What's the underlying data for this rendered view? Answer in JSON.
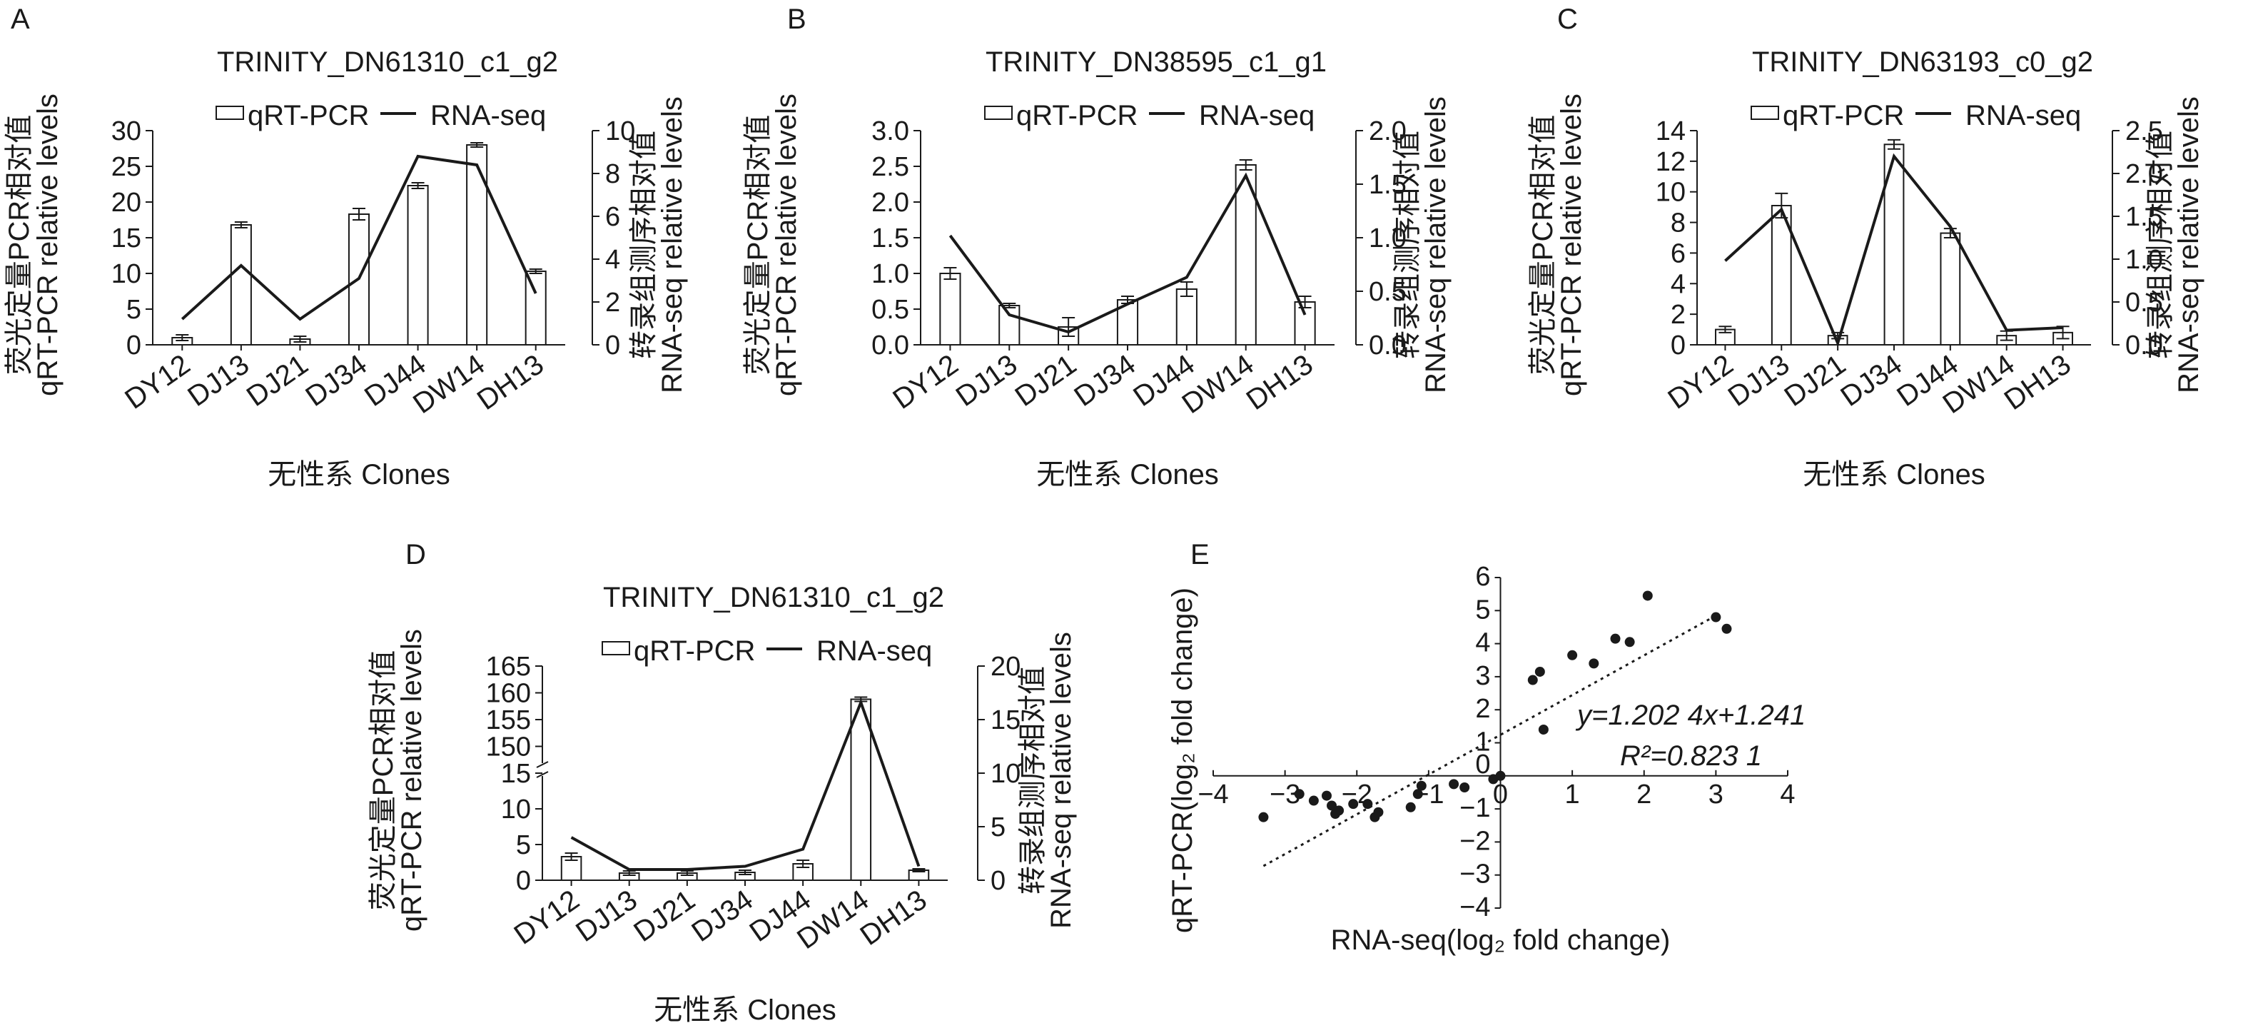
{
  "panels": [
    {
      "letter": "A",
      "title": "TRINITY_DN61310_c1_g2",
      "legend": {
        "bar": "qRT-PCR",
        "line": "RNA-seq"
      },
      "ylabel_left": [
        "荧光定量PCR相对值",
        "qRT-PCR relative levels"
      ],
      "ylabel_right": [
        "转录组测序相对值",
        "RNA-seq relative levels"
      ],
      "xlabel": "无性系 Clones"
    },
    {
      "letter": "B",
      "title": "TRINITY_DN38595_c1_g1",
      "legend": {
        "bar": "qRT-PCR",
        "line": "RNA-seq"
      },
      "ylabel_left": [
        "荧光定量PCR相对值",
        "qRT-PCR relative levels"
      ],
      "ylabel_right": [
        "转录组测序相对值",
        "RNA-seq relative levels"
      ],
      "xlabel": "无性系 Clones"
    },
    {
      "letter": "C",
      "title": "TRINITY_DN63193_c0_g2",
      "legend": {
        "bar": "qRT-PCR",
        "line": "RNA-seq"
      },
      "ylabel_left": [
        "荧光定量PCR相对值",
        "qRT-PCR relative levels"
      ],
      "ylabel_right": [
        "转录组测序相对值",
        "RNA-seq relative levels"
      ],
      "xlabel": "无性系 Clones"
    },
    {
      "letter": "D",
      "title": "TRINITY_DN61310_c1_g2",
      "legend": {
        "bar": "qRT-PCR",
        "line": "RNA-seq"
      },
      "ylabel_left": [
        "荧光定量PCR相对值",
        "qRT-PCR relative levels"
      ],
      "ylabel_right": [
        "转录组测序相对值",
        "RNA-seq relative levels"
      ],
      "xlabel": "无性系 Clones"
    },
    {
      "letter": "E",
      "xlabel": "RNA-seq(log₂ fold change)",
      "ylabel": "qRT-PCR(log₂ fold change)",
      "equation": "y=1.202 4x+1.241",
      "r2": "R²=0.823 1"
    }
  ],
  "chart_data": [
    {
      "type": "bar",
      "combo": "bar+line",
      "title": "TRINITY_DN61310_c1_g2",
      "categories": [
        "DY12",
        "DJ13",
        "DJ21",
        "DJ34",
        "DJ44",
        "DW14",
        "DH13"
      ],
      "xlabel": "无性系 Clones",
      "ylabel": "荧光定量PCR相对值 qRT-PCR relative levels",
      "y2label": "转录组测序相对值 RNA-seq relative levels",
      "ylim": [
        0,
        30
      ],
      "yticks": [
        0,
        5,
        10,
        15,
        20,
        25,
        30
      ],
      "y2lim": [
        0,
        10
      ],
      "y2ticks": [
        0,
        2,
        4,
        6,
        8,
        10
      ],
      "series": [
        {
          "name": "qRT-PCR",
          "kind": "bar",
          "axis": "left",
          "values": [
            1.0,
            16.8,
            0.8,
            18.3,
            22.3,
            28.0,
            10.3
          ],
          "errors": [
            0.4,
            0.4,
            0.4,
            0.8,
            0.4,
            0.3,
            0.3
          ]
        },
        {
          "name": "RNA-seq",
          "kind": "line",
          "axis": "right",
          "values": [
            1.2,
            3.7,
            1.2,
            3.1,
            8.8,
            8.4,
            2.4
          ]
        }
      ]
    },
    {
      "type": "bar",
      "combo": "bar+line",
      "title": "TRINITY_DN38595_c1_g1",
      "categories": [
        "DY12",
        "DJ13",
        "DJ21",
        "DJ34",
        "DJ44",
        "DW14",
        "DH13"
      ],
      "xlabel": "无性系 Clones",
      "ylabel": "荧光定量PCR相对值 qRT-PCR relative levels",
      "y2label": "转录组测序相对值 RNA-seq relative levels",
      "ylim": [
        0,
        3.0
      ],
      "yticks": [
        0,
        0.5,
        1.0,
        1.5,
        2.0,
        2.5,
        3.0
      ],
      "y2lim": [
        0,
        2.0
      ],
      "y2ticks": [
        0,
        0.5,
        1.0,
        1.5,
        2.0
      ],
      "series": [
        {
          "name": "qRT-PCR",
          "kind": "bar",
          "axis": "left",
          "values": [
            1.0,
            0.55,
            0.25,
            0.63,
            0.78,
            2.52,
            0.6
          ],
          "errors": [
            0.08,
            0.03,
            0.13,
            0.05,
            0.1,
            0.07,
            0.08
          ]
        },
        {
          "name": "RNA-seq",
          "kind": "line",
          "axis": "right",
          "values": [
            1.02,
            0.28,
            0.12,
            0.38,
            0.63,
            1.58,
            0.28
          ]
        }
      ]
    },
    {
      "type": "bar",
      "combo": "bar+line",
      "title": "TRINITY_DN63193_c0_g2",
      "categories": [
        "DY12",
        "DJ13",
        "DJ21",
        "DJ34",
        "DJ44",
        "DW14",
        "DH13"
      ],
      "xlabel": "无性系 Clones",
      "ylabel": "荧光定量PCR相对值 qRT-PCR relative levels",
      "y2label": "转录组测序相对值 RNA-seq relative levels",
      "ylim": [
        0,
        14
      ],
      "yticks": [
        0,
        2,
        4,
        6,
        8,
        10,
        12,
        14
      ],
      "y2lim": [
        0,
        2.5
      ],
      "y2ticks": [
        0,
        0.5,
        1.0,
        1.5,
        2.0,
        2.5
      ],
      "series": [
        {
          "name": "qRT-PCR",
          "kind": "bar",
          "axis": "left",
          "values": [
            1.0,
            9.1,
            0.6,
            13.1,
            7.3,
            0.6,
            0.8
          ],
          "errors": [
            0.2,
            0.8,
            0.2,
            0.3,
            0.3,
            0.3,
            0.4
          ]
        },
        {
          "name": "RNA-seq",
          "kind": "line",
          "axis": "right",
          "values": [
            0.98,
            1.58,
            0.02,
            2.2,
            1.38,
            0.17,
            0.2
          ]
        }
      ]
    },
    {
      "type": "bar",
      "combo": "bar+line",
      "title": "TRINITY_DN61310_c1_g2",
      "categories": [
        "DY12",
        "DJ13",
        "DJ21",
        "DJ34",
        "DJ44",
        "DW14",
        "DH13"
      ],
      "xlabel": "无性系 Clones",
      "ylabel": "荧光定量PCR相对值 qRT-PCR relative levels",
      "y2label": "转录组测序相对值 RNA-seq relative levels",
      "ylim": [
        0,
        165
      ],
      "yticks": [
        0,
        5,
        10,
        15,
        150,
        155,
        160,
        165
      ],
      "y_axis_break": [
        15,
        145
      ],
      "y2lim": [
        0,
        20
      ],
      "y2ticks": [
        0,
        5,
        10,
        15,
        20
      ],
      "series": [
        {
          "name": "qRT-PCR",
          "kind": "bar",
          "axis": "left",
          "values": [
            3.3,
            1.0,
            1.0,
            1.1,
            2.3,
            158.8,
            1.4
          ],
          "errors": [
            0.5,
            0.3,
            0.3,
            0.3,
            0.5,
            0.4,
            0.2
          ]
        },
        {
          "name": "RNA-seq",
          "kind": "line",
          "axis": "right",
          "values": [
            4.0,
            1.0,
            1.0,
            1.3,
            2.9,
            16.6,
            1.3
          ]
        }
      ]
    },
    {
      "type": "scatter",
      "xlabel": "RNA-seq(log₂ fold change)",
      "ylabel": "qRT-PCR(log₂ fold change)",
      "xlim": [
        -4,
        4
      ],
      "ylim": [
        -4,
        6
      ],
      "xticks": [
        -4,
        -3,
        -2,
        -1,
        0,
        1,
        2,
        3,
        4
      ],
      "yticks": [
        -4,
        -3,
        -2,
        -1,
        0,
        1,
        2,
        3,
        4,
        5,
        6
      ],
      "trendline": {
        "slope": 1.2024,
        "intercept": 1.241,
        "x_range": [
          -3.3,
          3.0
        ]
      },
      "annotations": [
        "y=1.202 4x+1.241",
        "R²=0.823 1"
      ],
      "points": [
        [
          -3.3,
          -1.25
        ],
        [
          -2.8,
          -0.55
        ],
        [
          -2.6,
          -0.75
        ],
        [
          -2.42,
          -0.6
        ],
        [
          -2.35,
          -0.9
        ],
        [
          -2.3,
          -1.15
        ],
        [
          -2.25,
          -1.05
        ],
        [
          -2.05,
          -0.85
        ],
        [
          -1.85,
          -0.85
        ],
        [
          -1.75,
          -1.25
        ],
        [
          -1.7,
          -1.1
        ],
        [
          -1.25,
          -0.95
        ],
        [
          -1.15,
          -0.55
        ],
        [
          -1.1,
          -0.3
        ],
        [
          -0.65,
          -0.25
        ],
        [
          -0.5,
          -0.35
        ],
        [
          -0.1,
          -0.1
        ],
        [
          0.0,
          0.0
        ],
        [
          0.45,
          2.9
        ],
        [
          0.55,
          3.15
        ],
        [
          0.6,
          1.4
        ],
        [
          1.0,
          3.65
        ],
        [
          1.3,
          3.4
        ],
        [
          1.6,
          4.15
        ],
        [
          1.8,
          4.05
        ],
        [
          2.05,
          5.45
        ],
        [
          3.0,
          4.8
        ],
        [
          3.15,
          4.45
        ]
      ]
    }
  ]
}
